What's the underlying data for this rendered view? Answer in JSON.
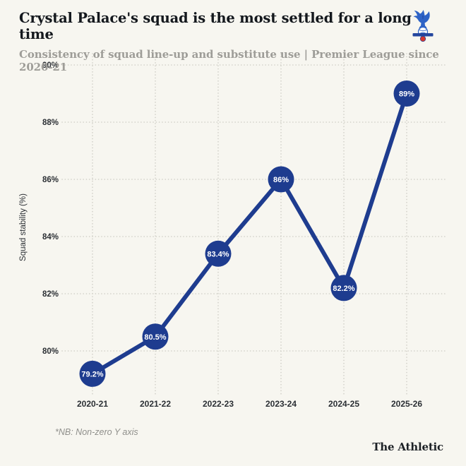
{
  "header": {
    "title": "Crystal Palace's squad is the most settled for a long time",
    "subtitle": "Consistency of squad line-up and substitute use | Premier League since 2020-21",
    "logo": "crystal-palace-crest"
  },
  "chart_data": {
    "type": "line",
    "title": "Crystal Palace's squad is the most settled for a long time",
    "subtitle": "Consistency of squad line-up and substitute use | Premier League since 2020-21",
    "categories": [
      "2020-21",
      "2021-22",
      "2022-23",
      "2023-24",
      "2024-25",
      "2025-26"
    ],
    "values": [
      79.2,
      80.5,
      83.4,
      86,
      82.2,
      89
    ],
    "point_labels": [
      "79.2%",
      "80.5%",
      "83.4%",
      "86%",
      "82.2%",
      "89%"
    ],
    "xlabel": "",
    "ylabel": "Squad stability (%)",
    "y_ticks": [
      80,
      82,
      84,
      86,
      88,
      90
    ],
    "y_tick_labels": [
      "80%",
      "82%",
      "84%",
      "86%",
      "88%",
      "90%"
    ],
    "ylim": [
      78.9,
      90.4
    ],
    "grid": "dotted",
    "legend": "none",
    "line_color": "#1e3c8f",
    "marker_color": "#1e3c8f",
    "marker_text_color": "#ffffff",
    "gridline_color": "#cfcec6",
    "axis_text_color": "#2b2f34"
  },
  "footer": {
    "note": "*NB: Non-zero Y axis",
    "credit": "The Athletic"
  },
  "colors": {
    "background": "#f7f6f0",
    "title": "#14181d",
    "subtitle": "#9e9d98",
    "accent_blue": "#1e3c8f",
    "crest_blue": "#2e63c6",
    "crest_red": "#d5372e"
  }
}
